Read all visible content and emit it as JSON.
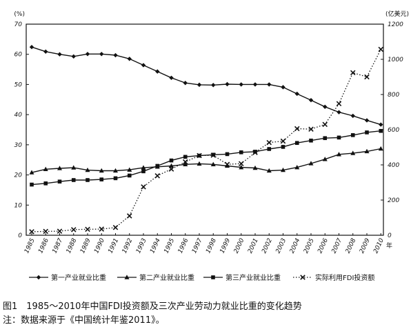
{
  "chart_data": {
    "type": "line",
    "left_axis_unit": "(%)",
    "right_axis_unit": "(亿美元)",
    "x_unit": "年",
    "left_ylim": [
      0,
      70
    ],
    "right_ylim": [
      0,
      1200
    ],
    "left_ticks": [
      "0",
      "10",
      "20",
      "30",
      "40",
      "50",
      "60",
      "70"
    ],
    "right_ticks": [
      "0",
      "200",
      "400",
      "600",
      "800",
      "1000",
      "1200"
    ],
    "categories": [
      "1985",
      "1986",
      "1987",
      "1988",
      "1989",
      "1990",
      "1991",
      "1992",
      "1993",
      "1994",
      "1995",
      "1996",
      "1997",
      "1998",
      "1999",
      "2000",
      "2001",
      "2002",
      "2003",
      "2004",
      "2005",
      "2006",
      "2007",
      "2008",
      "2009",
      "2010"
    ],
    "series": [
      {
        "name": "第一产业就业比重",
        "axis": "left",
        "marker": "diamond",
        "style": "solid",
        "color": "#111111",
        "values": [
          62.4,
          60.9,
          60.0,
          59.3,
          60.1,
          60.1,
          59.7,
          58.5,
          56.4,
          54.3,
          52.2,
          50.5,
          49.9,
          49.8,
          50.1,
          50.0,
          50.0,
          50.0,
          49.1,
          46.9,
          44.8,
          42.6,
          40.8,
          39.6,
          38.1,
          36.7
        ]
      },
      {
        "name": "第二产业就业比重",
        "axis": "left",
        "marker": "triangle",
        "style": "solid",
        "color": "#111111",
        "values": [
          20.8,
          21.9,
          22.2,
          22.4,
          21.6,
          21.4,
          21.4,
          21.7,
          22.4,
          22.7,
          23.0,
          23.5,
          23.7,
          23.5,
          23.0,
          22.5,
          22.3,
          21.4,
          21.6,
          22.5,
          23.8,
          25.2,
          26.8,
          27.2,
          27.8,
          28.7
        ]
      },
      {
        "name": "第三产业就业比重",
        "axis": "left",
        "marker": "square",
        "style": "solid",
        "color": "#111111",
        "values": [
          16.8,
          17.2,
          17.8,
          18.3,
          18.3,
          18.5,
          18.9,
          19.8,
          21.2,
          23.0,
          24.8,
          26.0,
          26.4,
          26.7,
          26.9,
          27.5,
          27.7,
          28.6,
          29.3,
          30.6,
          31.4,
          32.2,
          32.4,
          33.2,
          34.1,
          34.6
        ]
      },
      {
        "name": "实际利用FDI投资额",
        "axis": "right",
        "marker": "x",
        "style": "dotted",
        "color": "#111111",
        "values": [
          20,
          22,
          23,
          32,
          34,
          35,
          44,
          110,
          275,
          338,
          376,
          417,
          453,
          455,
          403,
          407,
          470,
          527,
          535,
          606,
          603,
          630,
          748,
          924,
          900,
          1057
        ]
      }
    ],
    "legend": "bottom",
    "grid": false
  },
  "caption": {
    "line1": "图1　1985～2010年中国FDI投资额及三次产业劳动力就业比重的变化趋势",
    "line2": "注：数据来源于《中国统计年鉴2011》。"
  }
}
